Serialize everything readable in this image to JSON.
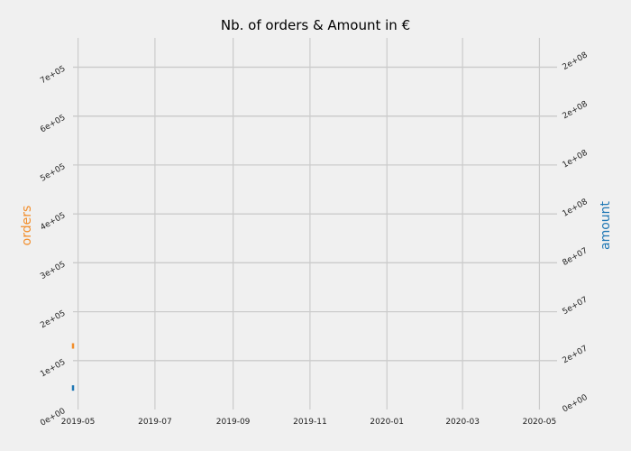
{
  "chart_data": {
    "type": "line",
    "title": "Nb. of orders & Amount in €",
    "x": [
      "2019-04-27"
    ],
    "x_ticks": [
      "2019-05",
      "2019-07",
      "2019-09",
      "2019-11",
      "2020-01",
      "2020-03",
      "2020-05"
    ],
    "xlim": [
      "2019-04-27",
      "2020-05-15"
    ],
    "y_left": {
      "label": "orders",
      "ticks": [
        "0e+00",
        "1e+05",
        "2e+05",
        "3e+05",
        "4e+05",
        "5e+05",
        "6e+05",
        "7e+05"
      ],
      "ylim": [
        0,
        760000
      ]
    },
    "y_right": {
      "label": "amount",
      "ticks": [
        "0e+00",
        "2e+07",
        "5e+07",
        "8e+07",
        "1e+08",
        "1e+08",
        "2e+08",
        "2e+08"
      ],
      "ylim": [
        0,
        190000000
      ]
    },
    "series": [
      {
        "name": "orders",
        "axis": "left",
        "color": "#f28e2b",
        "values": [
          130000
        ]
      },
      {
        "name": "amount",
        "axis": "right",
        "color": "#1f77b4",
        "values": [
          11000000
        ]
      }
    ],
    "grid": true
  }
}
